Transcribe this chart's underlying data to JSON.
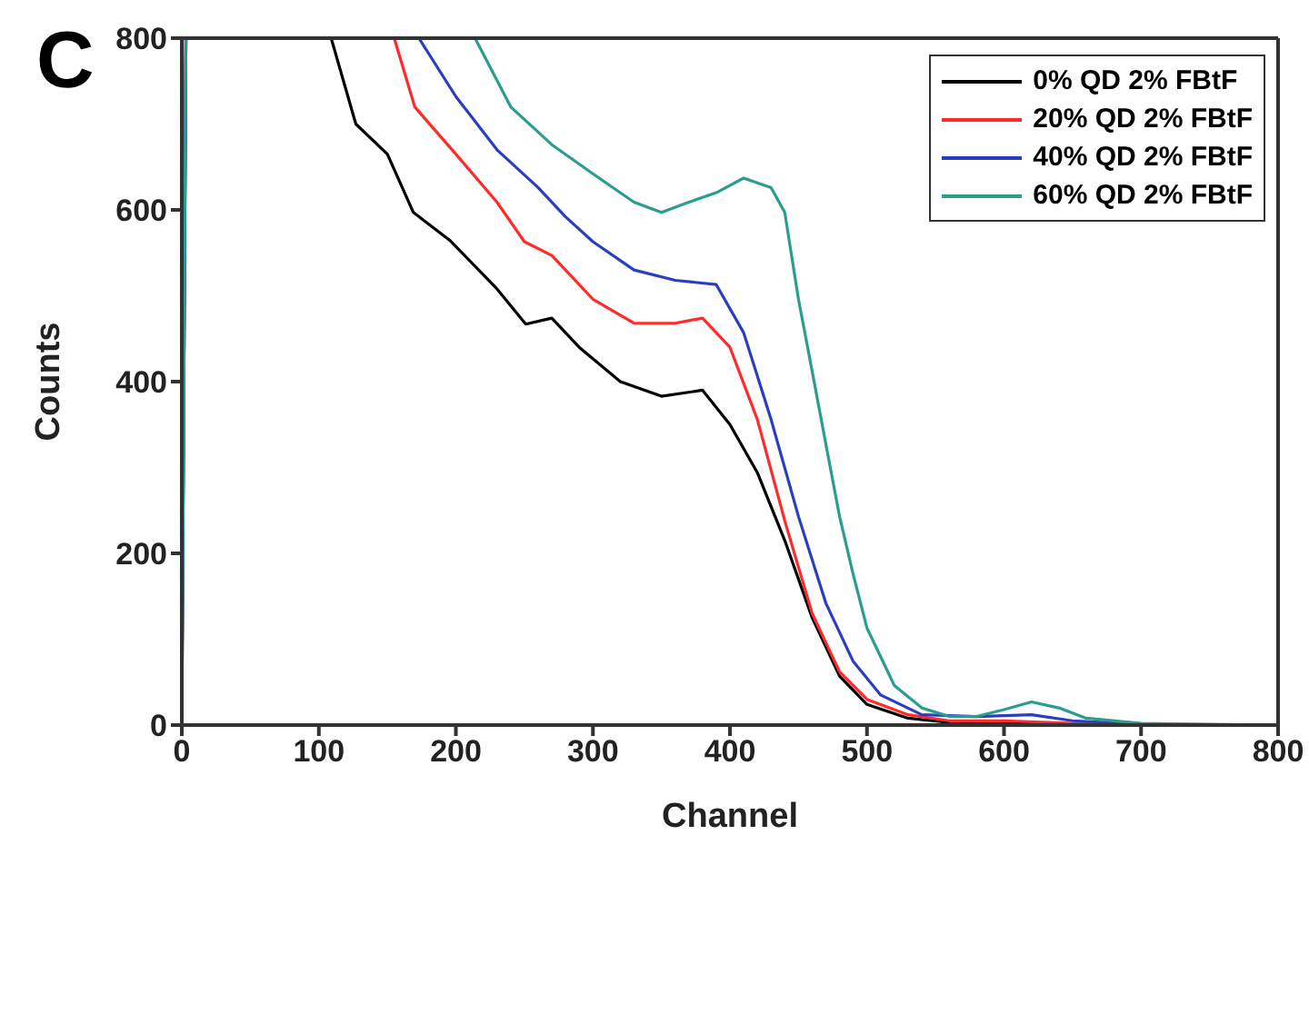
{
  "chart_data": {
    "type": "line",
    "xlabel": "Channel",
    "ylabel": "Counts",
    "annotations": [
      "C"
    ],
    "xlim": [
      0,
      800
    ],
    "xticks": [
      0,
      100,
      200,
      300,
      400,
      500,
      600,
      700,
      800
    ],
    "ylim": [
      0,
      800
    ],
    "yticks": [
      0,
      200,
      400,
      600,
      800
    ],
    "legend": "top right",
    "marker": "none",
    "line_style": "solid",
    "series": [
      {
        "name": "0% QD 2% FBtF",
        "color": "#000000",
        "x": [
          0,
          3,
          6,
          109,
          127,
          150,
          169,
          196,
          230,
          251,
          270,
          290,
          320,
          350,
          380,
          400,
          420,
          440,
          460,
          480,
          500,
          530,
          560,
          600,
          700,
          800
        ],
        "values": [
          0,
          800,
          null,
          800,
          700,
          665,
          597,
          564,
          508,
          467,
          474,
          440,
          400,
          383,
          390,
          350,
          294,
          215,
          125,
          57,
          24,
          8,
          3,
          2,
          0,
          0
        ]
      },
      {
        "name": "20% QD 2% FBtF",
        "color": "#ff2a2a",
        "x": [
          0,
          3,
          6,
          155,
          170,
          200,
          230,
          250,
          270,
          300,
          330,
          360,
          380,
          400,
          420,
          440,
          460,
          480,
          500,
          530,
          560,
          600,
          650,
          700,
          800
        ],
        "values": [
          0,
          800,
          null,
          800,
          720,
          665,
          609,
          563,
          547,
          496,
          468,
          468,
          474,
          440,
          356,
          238,
          130,
          62,
          30,
          12,
          5,
          5,
          2,
          0,
          0
        ]
      },
      {
        "name": "40% QD 2% FBtF",
        "color": "#2a3fc0",
        "x": [
          0,
          3,
          6,
          173,
          200,
          230,
          260,
          280,
          300,
          330,
          360,
          390,
          410,
          430,
          450,
          470,
          490,
          510,
          540,
          580,
          620,
          650,
          700,
          800
        ],
        "values": [
          0,
          800,
          null,
          800,
          732,
          670,
          626,
          592,
          563,
          530,
          518,
          513,
          457,
          356,
          243,
          142,
          74,
          35,
          12,
          10,
          12,
          5,
          1,
          0
        ]
      },
      {
        "name": "60% QD 2% FBtF",
        "color": "#2a9d8f",
        "x": [
          0,
          3,
          6,
          214,
          240,
          270,
          300,
          330,
          350,
          370,
          390,
          410,
          430,
          440,
          450,
          460,
          470,
          480,
          490,
          500,
          520,
          540,
          560,
          580,
          600,
          620,
          640,
          660,
          700,
          800
        ],
        "values": [
          0,
          800,
          null,
          800,
          720,
          676,
          642,
          609,
          597,
          609,
          620,
          637,
          626,
          597,
          496,
          412,
          327,
          243,
          175,
          113,
          46,
          20,
          10,
          10,
          18,
          27,
          20,
          8,
          2,
          0
        ]
      }
    ]
  }
}
